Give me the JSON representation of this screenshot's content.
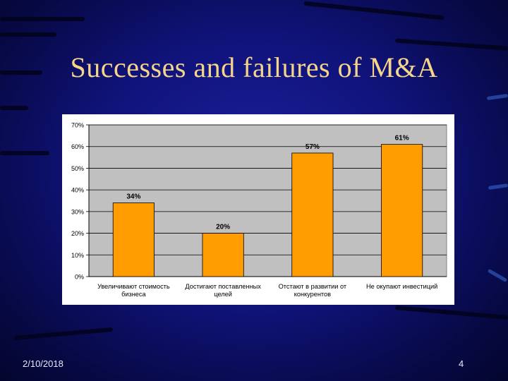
{
  "slide": {
    "title": "Successes and failures of M&A",
    "date": "2/10/2018",
    "page_number": "4"
  },
  "chart_data": {
    "type": "bar",
    "title": "",
    "xlabel": "",
    "ylabel": "",
    "categories": [
      [
        "Увеличивают стоимость",
        "бизнеса"
      ],
      [
        "Достигают поставленных",
        "целей"
      ],
      [
        "Отстают в развитии от",
        "конкурентов"
      ],
      [
        "Не окупают инвестиций"
      ]
    ],
    "values": [
      34,
      20,
      57,
      61
    ],
    "data_labels": [
      "34%",
      "20%",
      "57%",
      "61%"
    ],
    "yticks": [
      "0%",
      "10%",
      "20%",
      "30%",
      "40%",
      "50%",
      "60%",
      "70%"
    ],
    "ylim": [
      0,
      70
    ],
    "grid": true,
    "legend": "none",
    "bar_color": "#ff9c00",
    "plot_background": "#c0c0c0"
  }
}
